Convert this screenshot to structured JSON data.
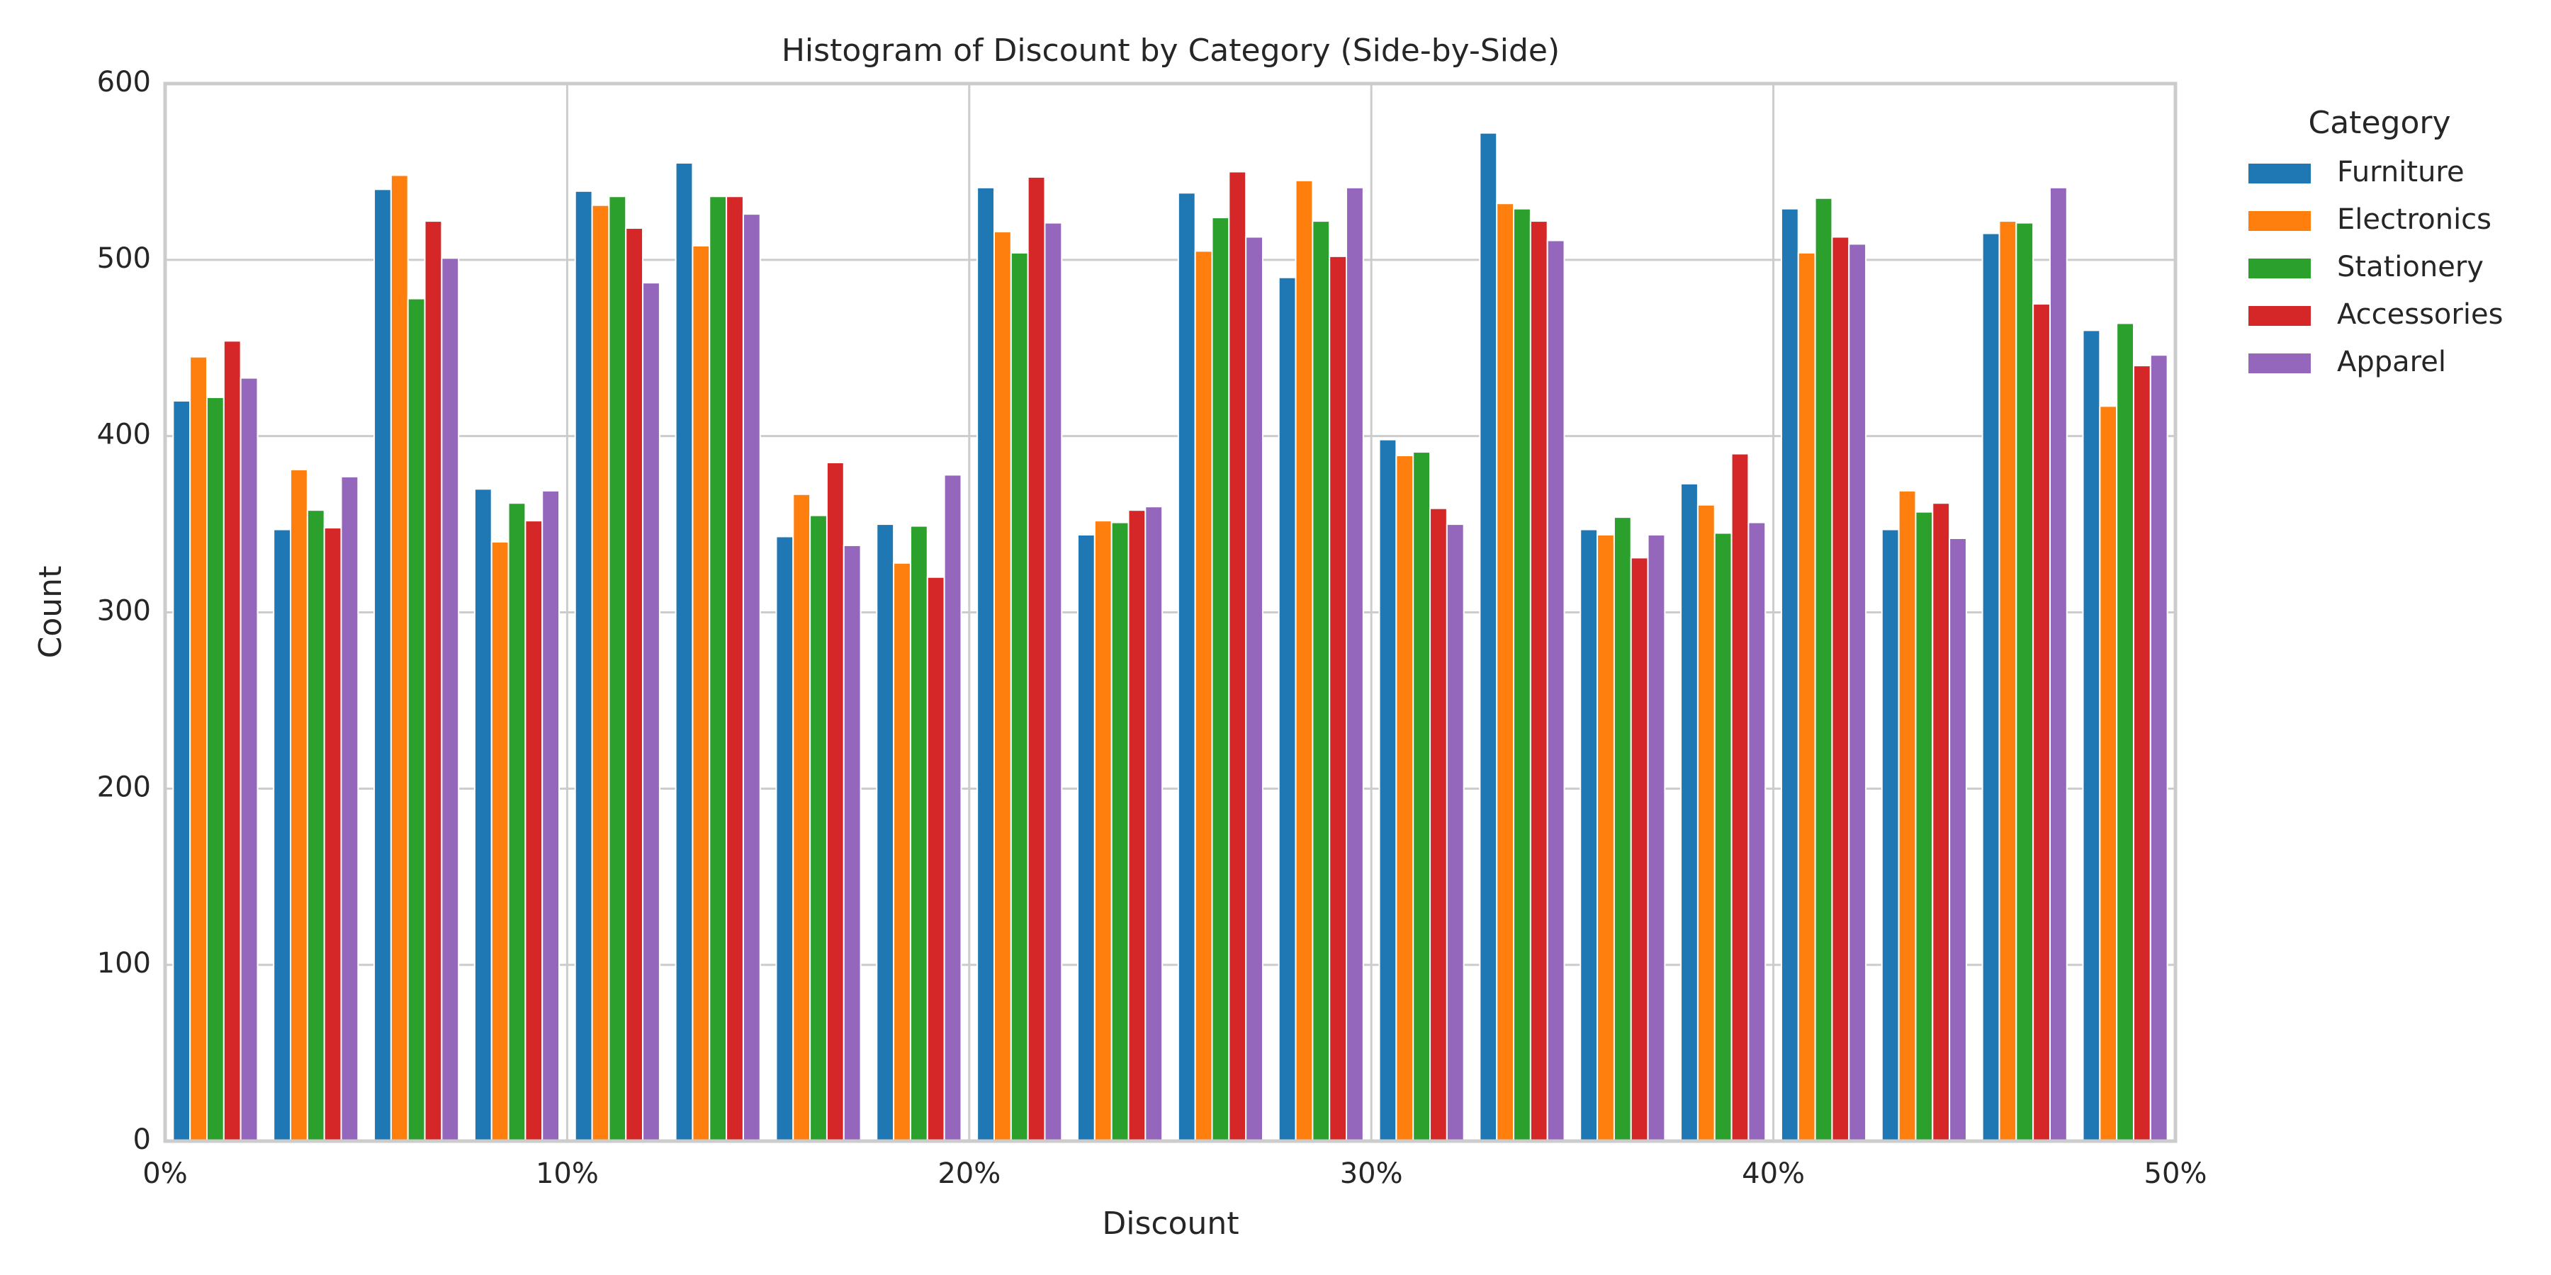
{
  "chart_data": {
    "type": "histogram",
    "title": "Histogram of Discount by Category (Side-by-Side)",
    "x_label": "Discount",
    "y_label": "Count",
    "legend_title": "Category",
    "legend": "upper right outside",
    "grid": true,
    "bins": [
      0,
      2.5,
      5,
      7.5,
      10,
      12.5,
      15,
      17.5,
      20,
      22.5,
      25,
      27.5,
      30,
      32.5,
      35,
      37.5,
      40,
      42.5,
      45,
      47.5,
      50
    ],
    "series": [
      {
        "name": "Furniture",
        "color": "#1f77b4",
        "values": [
          420,
          347,
          540,
          370,
          539,
          555,
          343,
          350,
          541,
          344,
          538,
          490,
          398,
          572,
          347,
          373,
          529,
          347,
          515,
          460
        ]
      },
      {
        "name": "Electronics",
        "color": "#ff7f0e",
        "values": [
          445,
          381,
          548,
          340,
          531,
          508,
          367,
          328,
          516,
          352,
          505,
          545,
          389,
          532,
          344,
          361,
          504,
          369,
          522,
          417
        ]
      },
      {
        "name": "Stationery",
        "color": "#2ca02c",
        "values": [
          422,
          358,
          478,
          362,
          536,
          536,
          355,
          349,
          504,
          351,
          524,
          522,
          391,
          529,
          354,
          345,
          535,
          357,
          521,
          464
        ]
      },
      {
        "name": "Accessories",
        "color": "#d62728",
        "values": [
          454,
          348,
          522,
          352,
          518,
          536,
          385,
          320,
          547,
          358,
          550,
          502,
          359,
          522,
          331,
          390,
          513,
          362,
          475,
          440
        ]
      },
      {
        "name": "Apparel",
        "color": "#9467bd",
        "values": [
          433,
          377,
          501,
          369,
          487,
          526,
          338,
          378,
          521,
          360,
          513,
          541,
          350,
          511,
          344,
          351,
          509,
          342,
          541,
          446
        ]
      }
    ],
    "xlim": [
      0,
      50
    ],
    "xticks": [
      {
        "value": 0,
        "label": "0%"
      },
      {
        "value": 10,
        "label": "10%"
      },
      {
        "value": 20,
        "label": "20%"
      },
      {
        "value": 30,
        "label": "30%"
      },
      {
        "value": 40,
        "label": "40%"
      },
      {
        "value": 50,
        "label": "50%"
      }
    ],
    "ylim": [
      0,
      600
    ],
    "yticks": [
      0,
      100,
      200,
      300,
      400,
      500,
      600
    ]
  }
}
